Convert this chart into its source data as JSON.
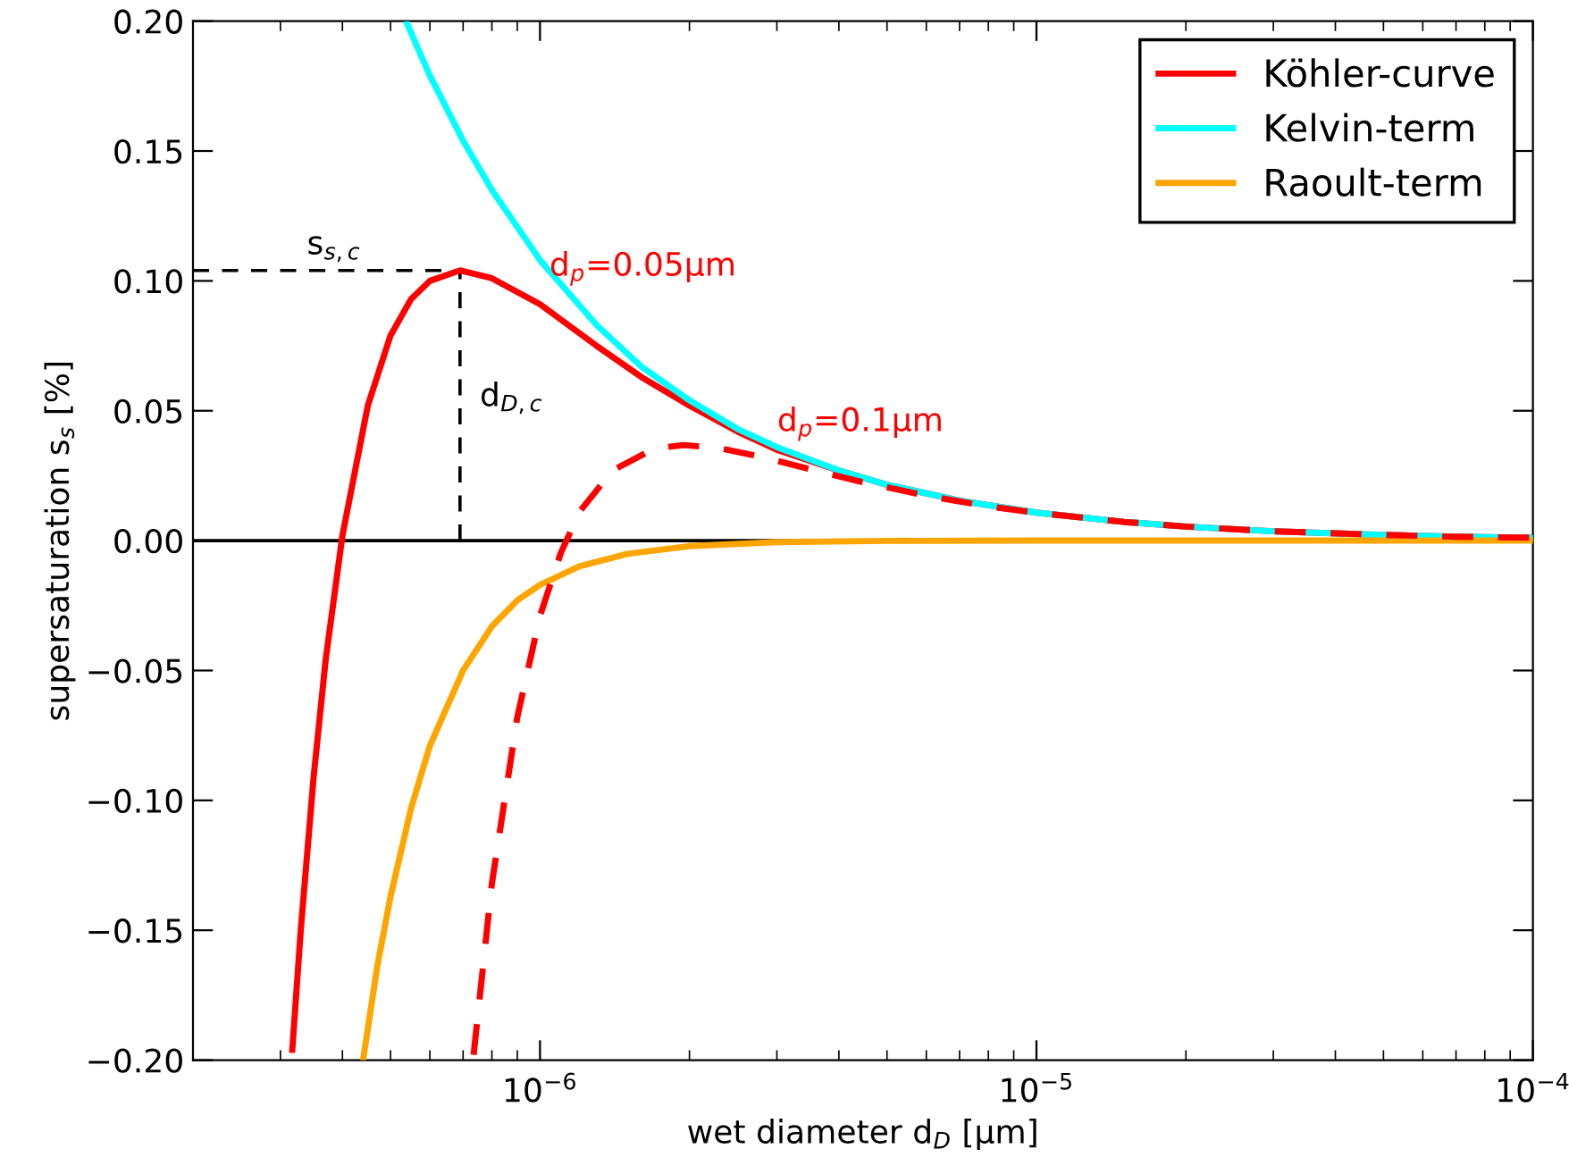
{
  "chart_data": {
    "type": "line",
    "xlabel": "wet diameter d$_{D}$ [μm]",
    "ylabel": "supersaturation s$_{s}$ [%]",
    "log": "x",
    "xlim": [
      2e-07,
      0.0001
    ],
    "xticks": [
      {
        "value": 1e-06,
        "label": "10$^{−6}$"
      },
      {
        "value": 1e-05,
        "label": "10$^{−5}$"
      },
      {
        "value": 0.0001,
        "label": "10$^{−4}$"
      }
    ],
    "ylim": [
      -0.2,
      0.2
    ],
    "yticks": [
      {
        "value": -0.2,
        "label": "−0.20"
      },
      {
        "value": -0.15,
        "label": "−0.15"
      },
      {
        "value": -0.1,
        "label": "−0.10"
      },
      {
        "value": -0.05,
        "label": "−0.05"
      },
      {
        "value": 0,
        "label": "0.00"
      },
      {
        "value": 0.05,
        "label": "0.05"
      },
      {
        "value": 0.1,
        "label": "0.10"
      },
      {
        "value": 0.15,
        "label": "0.15"
      },
      {
        "value": 0.2,
        "label": "0.20"
      }
    ],
    "grid": false,
    "legend": "top right",
    "ref_lines": [
      {
        "axis": "y",
        "value": 0,
        "color": "#000000"
      }
    ],
    "series": [
      {
        "name": "Köhler-curve",
        "color": "#ff0000",
        "line_style": "solid",
        "x": [
          3.17e-07,
          3.3e-07,
          3.5e-07,
          3.7e-07,
          4e-07,
          4.5e-07,
          5e-07,
          5.5e-07,
          6e-07,
          6.9e-07,
          8e-07,
          1e-06,
          1.3e-06,
          1.6e-06,
          2e-06,
          2.5e-06,
          3e-06,
          4e-06,
          5e-06,
          7e-06,
          1e-05,
          1.5e-05,
          2e-05,
          3e-05,
          5e-05,
          7e-05,
          0.0001
        ],
        "values": [
          -0.196,
          -0.149,
          -0.091,
          -0.046,
          0.002,
          0.052,
          0.079,
          0.093,
          0.1,
          0.104,
          0.101,
          0.091,
          0.075,
          0.063,
          0.052,
          0.042,
          0.035,
          0.027,
          0.0215,
          0.0154,
          0.0108,
          0.0072,
          0.0054,
          0.0036,
          0.0022,
          0.0015,
          0.0011
        ]
      },
      {
        "name": "Kelvin-term",
        "color": "#00ffff",
        "line_style": "solid",
        "x": [
          5.4e-07,
          6e-07,
          7e-07,
          8e-07,
          1e-06,
          1.3e-06,
          1.6e-06,
          2e-06,
          2.5e-06,
          3e-06,
          4e-06,
          5e-06,
          7e-06,
          1e-05,
          1.5e-05,
          2e-05,
          3e-05,
          5e-05,
          7e-05,
          0.0001
        ],
        "values": [
          0.199,
          0.179,
          0.154,
          0.135,
          0.108,
          0.083,
          0.067,
          0.054,
          0.043,
          0.036,
          0.027,
          0.0215,
          0.0154,
          0.0108,
          0.0072,
          0.0054,
          0.0036,
          0.0022,
          0.0015,
          0.0011
        ]
      },
      {
        "name": "Raoult-term",
        "color": "#ffa500",
        "line_style": "solid",
        "x": [
          4.41e-07,
          4.7e-07,
          5e-07,
          5.5e-07,
          6e-07,
          7e-07,
          8e-07,
          9e-07,
          1e-06,
          1.2e-06,
          1.5e-06,
          2e-06,
          3e-06,
          5e-06,
          1e-05,
          0.0001
        ],
        "values": [
          -0.199,
          -0.164,
          -0.137,
          -0.103,
          -0.079,
          -0.05,
          -0.033,
          -0.023,
          -0.017,
          -0.0099,
          -0.0051,
          -0.0021,
          -0.0006,
          -0.0001,
          0,
          0
        ]
      },
      {
        "color": "#ff0000",
        "line_style": "dashed",
        "x": [
          7.35e-07,
          8e-07,
          9e-07,
          1e-06,
          1.1e-06,
          1.2e-06,
          1.4e-06,
          1.7e-06,
          1.95e-06,
          2.3e-06,
          2.8e-06,
          3.5e-06,
          4.5e-06,
          6e-06,
          8e-06,
          1e-05,
          1.5e-05,
          2e-05,
          3e-05,
          5e-05,
          7e-05,
          0.0001
        ],
        "values": [
          -0.198,
          -0.132,
          -0.068,
          -0.029,
          -0.005,
          0.011,
          0.027,
          0.0355,
          0.0368,
          0.0356,
          0.0322,
          0.0275,
          0.0224,
          0.0173,
          0.0132,
          0.0107,
          0.0072,
          0.0054,
          0.0036,
          0.0022,
          0.0015,
          0.0011
        ]
      },
      {
        "color": "#000000",
        "line_style": "dashed",
        "x": [
          2e-07,
          6.9e-07
        ],
        "values": [
          0.104,
          0.104
        ]
      },
      {
        "color": "#000000",
        "line_style": "dashed",
        "x": [
          6.9e-07,
          6.9e-07
        ],
        "values": [
          0,
          0.104
        ]
      }
    ],
    "annotations": [
      "s$_{s,c}$",
      "d$_{D,c}$",
      "d$_{p}$=0.05μm",
      "d$_{p}$=0.1μm"
    ]
  }
}
